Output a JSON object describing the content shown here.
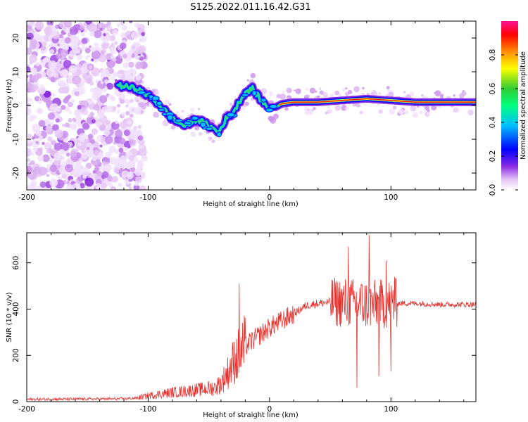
{
  "figure": {
    "title": "S125.2022.011.16.42.G31"
  },
  "chart_data": [
    {
      "type": "heatmap",
      "name": "spectrogram",
      "xlabel": "Height of straight line (km)",
      "ylabel": "Frequency (Hz)",
      "xlim": [
        -200,
        170
      ],
      "ylim": [
        -25,
        25
      ],
      "xticks": [
        -200,
        -100,
        0,
        100
      ],
      "yticks": [
        -20,
        -10,
        0,
        10,
        20
      ],
      "colorbar": {
        "label": "Normalized spectral amplitude",
        "range": [
          0,
          1
        ],
        "ticks": [
          "0.0",
          "0.2",
          "0.4",
          "0.6",
          "0.8"
        ],
        "colors": [
          "#ffffff",
          "#e6c8f5",
          "#8a2be2",
          "#0000ff",
          "#00bfff",
          "#00ff7f",
          "#32cd32",
          "#ffff00",
          "#ff8c00",
          "#ff0000",
          "#ff1493"
        ]
      },
      "ridge": {
        "x": [
          -125,
          -110,
          -100,
          -90,
          -80,
          -70,
          -60,
          -50,
          -42,
          -36,
          -30,
          -25,
          -20,
          -14,
          -8,
          -3,
          0,
          5,
          10,
          20,
          40,
          60,
          80,
          100,
          120,
          140,
          170
        ],
        "y": [
          6,
          5,
          3,
          0,
          -4,
          -6,
          -4,
          -6,
          -8,
          -4,
          -2,
          1,
          4,
          5,
          2,
          0,
          -0.5,
          -0.5,
          0.5,
          1,
          1,
          1.5,
          2,
          1.5,
          1,
          1,
          1
        ]
      }
    },
    {
      "type": "line",
      "name": "snr",
      "xlabel": "Height of straight line (km)",
      "ylabel": "SNR (10 * v/v)",
      "xlim": [
        -200,
        170
      ],
      "ylim": [
        0,
        730
      ],
      "xticks": [
        -200,
        -100,
        0,
        100
      ],
      "yticks": [
        0,
        200,
        400,
        600
      ],
      "color": "#e8322e",
      "envelope": {
        "x": [
          -200,
          -120,
          -110,
          -100,
          -80,
          -60,
          -45,
          -40,
          -35,
          -30,
          -20,
          -10,
          0,
          10,
          20,
          30,
          40,
          50,
          60,
          70,
          80,
          90,
          100,
          110,
          120,
          140,
          170
        ],
        "y": [
          10,
          12,
          15,
          25,
          40,
          50,
          60,
          80,
          120,
          170,
          240,
          280,
          320,
          350,
          380,
          415,
          425,
          430,
          430,
          425,
          420,
          420,
          425,
          425,
          425,
          420,
          420
        ]
      },
      "spikes": [
        {
          "x": -25,
          "y": 510
        },
        {
          "x": 65,
          "y": 670
        },
        {
          "x": 72,
          "y": 60
        },
        {
          "x": 82,
          "y": 720
        },
        {
          "x": 90,
          "y": 110
        },
        {
          "x": 96,
          "y": 610
        },
        {
          "x": 100,
          "y": 130
        },
        {
          "x": 103,
          "y": 540
        }
      ]
    }
  ]
}
